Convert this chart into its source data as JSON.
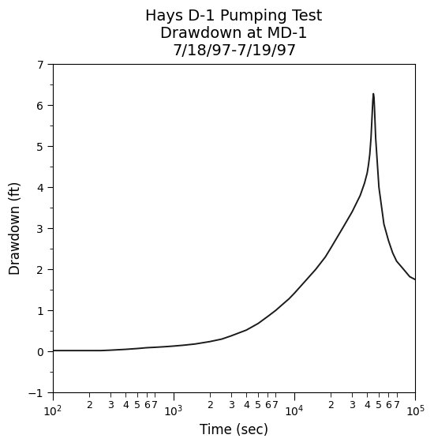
{
  "title": "Hays D-1 Pumping Test\nDrawdown at MD-1\n7/18/97-7/19/97",
  "xlabel": "Time (sec)",
  "ylabel": "Drawdown (ft)",
  "xlim": [
    100,
    100000
  ],
  "ylim": [
    -1,
    7
  ],
  "yticks": [
    -1,
    0,
    1,
    2,
    3,
    4,
    5,
    6,
    7
  ],
  "background_color": "#ffffff",
  "line_color": "#1a1a1a",
  "line_width": 1.4,
  "curve_x": [
    100,
    120,
    150,
    180,
    200,
    250,
    300,
    400,
    500,
    600,
    700,
    800,
    900,
    1000,
    1200,
    1500,
    2000,
    2500,
    3000,
    4000,
    5000,
    6000,
    7000,
    8000,
    9000,
    10000,
    12000,
    15000,
    18000,
    20000,
    25000,
    30000,
    35000,
    38000,
    40000,
    41000,
    42000,
    43000,
    44000,
    44500,
    45000,
    45500,
    46000,
    47000,
    50000,
    55000,
    60000,
    65000,
    70000,
    80000,
    90000,
    100000
  ],
  "curve_y": [
    0.02,
    0.02,
    0.02,
    0.02,
    0.02,
    0.02,
    0.03,
    0.05,
    0.07,
    0.09,
    0.1,
    0.11,
    0.12,
    0.13,
    0.15,
    0.18,
    0.24,
    0.3,
    0.38,
    0.52,
    0.68,
    0.85,
    1.0,
    1.15,
    1.28,
    1.42,
    1.68,
    2.0,
    2.3,
    2.52,
    3.0,
    3.4,
    3.8,
    4.1,
    4.35,
    4.55,
    4.8,
    5.2,
    5.8,
    6.1,
    6.28,
    6.2,
    5.9,
    5.2,
    4.0,
    3.1,
    2.7,
    2.4,
    2.2,
    2.0,
    1.82,
    1.75
  ]
}
